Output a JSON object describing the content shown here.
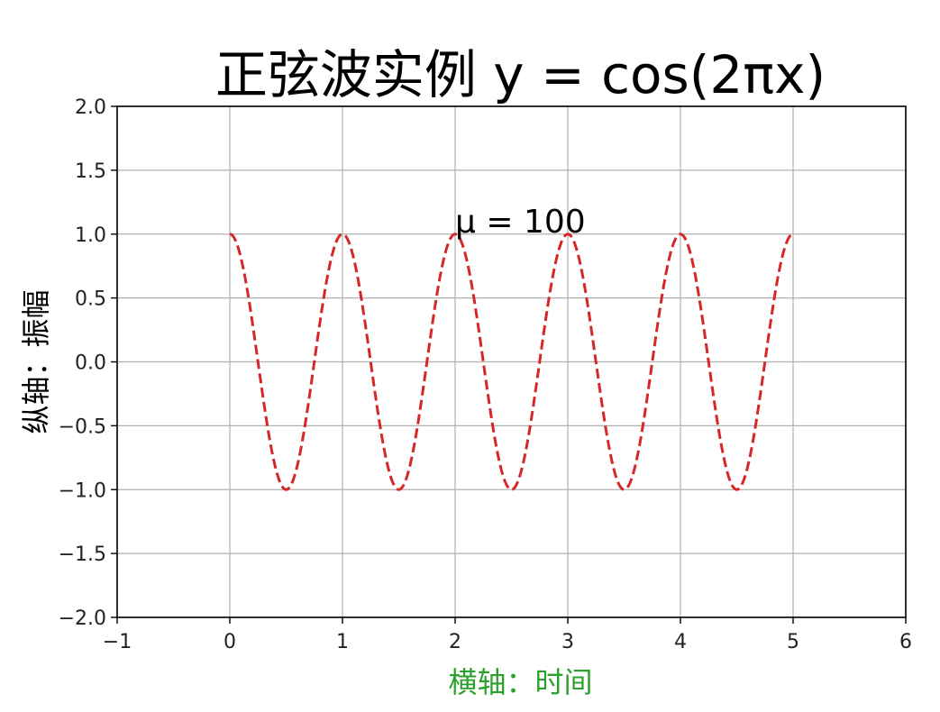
{
  "chart_data": {
    "type": "line",
    "title": "正弦波实例 y = cos(2πx)",
    "xlabel": "横轴：时间",
    "ylabel": "纵轴：振幅",
    "xlim": [
      -1,
      6
    ],
    "ylim": [
      -2.0,
      2.0
    ],
    "x_ticks": [
      -1,
      0,
      1,
      2,
      3,
      4,
      5,
      6
    ],
    "x_tick_labels": [
      "−1",
      "0",
      "1",
      "2",
      "3",
      "4",
      "5",
      "6"
    ],
    "y_ticks": [
      2.0,
      1.5,
      1.0,
      0.5,
      0.0,
      -0.5,
      -1.0,
      -1.5,
      -2.0
    ],
    "y_tick_labels": [
      "2.0",
      "1.5",
      "1.0",
      "0.5",
      "0.0",
      "−0.5",
      "−1.0",
      "−1.5",
      "−2.0"
    ],
    "grid": true,
    "series": [
      {
        "function": "cos(2*pi*x)",
        "x_range": [
          0,
          5
        ],
        "color": "#d62728",
        "linestyle": "dashed"
      }
    ],
    "annotations": [
      {
        "text": "μ = 100",
        "x": 2,
        "y": 1.0
      }
    ],
    "xlabel_color": "#2ca02c",
    "ylabel_color": "#000000"
  }
}
